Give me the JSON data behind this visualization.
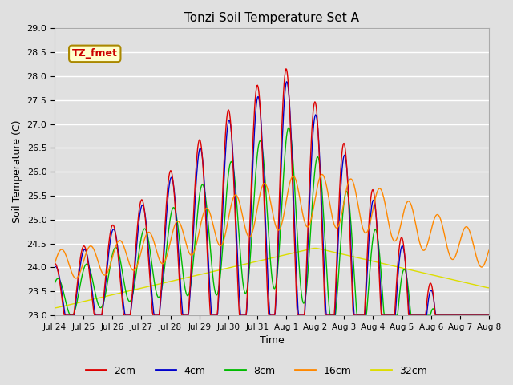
{
  "title": "Tonzi Soil Temperature Set A",
  "xlabel": "Time",
  "ylabel": "Soil Temperature (C)",
  "ylim": [
    23.0,
    29.0
  ],
  "yticks": [
    23.0,
    23.5,
    24.0,
    24.5,
    25.0,
    25.5,
    26.0,
    26.5,
    27.0,
    27.5,
    28.0,
    28.5,
    29.0
  ],
  "legend_label": "TZ_fmet",
  "series_colors": {
    "2cm": "#dd0000",
    "4cm": "#0000cc",
    "8cm": "#00bb00",
    "16cm": "#ff8800",
    "32cm": "#dddd00"
  },
  "bg_color": "#e0e0e0",
  "plot_bg_color": "#e0e0e0",
  "grid_color": "#ffffff",
  "n_points": 720,
  "end_day": 15.0,
  "xtick_days": [
    0,
    1,
    2,
    3,
    4,
    5,
    6,
    7,
    8,
    9,
    10,
    11,
    12,
    13,
    14,
    15
  ],
  "xtick_labels": [
    "Jul 24",
    "Jul 25",
    "Jul 26",
    "Jul 27",
    "Jul 28",
    "Jul 29",
    "Jul 30",
    "Jul 31",
    "Aug 1",
    "Aug 2",
    "Aug 3",
    "Aug 4",
    "Aug 5",
    "Aug 6",
    "Aug 7",
    "Aug 8"
  ]
}
